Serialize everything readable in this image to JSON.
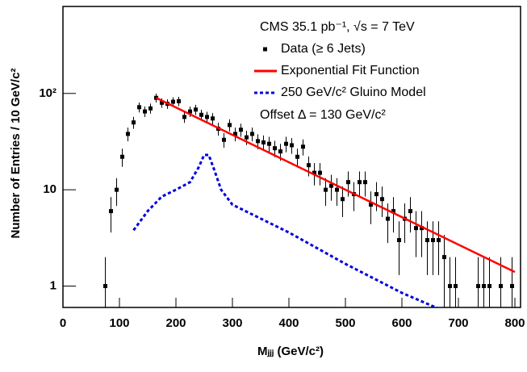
{
  "chart_data": {
    "type": "scatter",
    "xlabel": "Mⱼⱼⱼ (GeV/c²)",
    "ylabel": "Number of Entries / 10 GeV/c²",
    "annotations": [
      "CMS  35.1 pb⁻¹,  √s = 7 TeV",
      "Offset Δ = 130 GeV/c²"
    ],
    "xlim": [
      0,
      810
    ],
    "ylim": [
      0.6,
      800
    ],
    "log_y": true,
    "xticks": [
      0,
      100,
      200,
      300,
      400,
      500,
      600,
      700,
      800
    ],
    "yticks": [
      1,
      10,
      {
        "value": 100,
        "label": "10²"
      }
    ],
    "series": [
      {
        "name": "Data (≥ 6 Jets)",
        "type": "points",
        "color": "#000000",
        "x": [
          75,
          85,
          95,
          105,
          115,
          125,
          135,
          145,
          155,
          165,
          175,
          185,
          195,
          205,
          215,
          225,
          235,
          245,
          255,
          265,
          275,
          285,
          295,
          305,
          315,
          325,
          335,
          345,
          355,
          365,
          375,
          385,
          395,
          405,
          415,
          425,
          435,
          445,
          455,
          465,
          475,
          485,
          495,
          505,
          515,
          525,
          535,
          545,
          555,
          565,
          575,
          585,
          595,
          605,
          615,
          625,
          635,
          645,
          655,
          665,
          675,
          685,
          695,
          735,
          745,
          755,
          775,
          795
        ],
        "values": [
          1,
          6,
          10,
          22,
          38,
          50,
          72,
          65,
          70,
          90,
          80,
          78,
          82,
          83,
          57,
          65,
          68,
          60,
          57,
          55,
          43,
          33,
          47,
          38,
          42,
          35,
          38,
          32,
          31,
          30,
          27,
          25,
          30,
          29,
          22,
          28,
          18,
          15,
          15,
          10,
          11,
          10,
          8,
          12,
          9,
          12,
          12,
          7,
          9,
          8,
          5,
          6,
          3,
          5,
          6,
          4,
          4,
          3,
          3,
          3,
          2,
          1,
          1,
          1,
          1,
          1,
          1,
          1
        ],
        "errors": [
          1,
          2.4,
          3.2,
          4.7,
          6.2,
          7.1,
          8.5,
          8.1,
          8.4,
          9.5,
          8.9,
          8.8,
          9.1,
          9.1,
          7.5,
          8.1,
          8.2,
          7.7,
          7.5,
          7.4,
          6.6,
          5.7,
          6.9,
          6.2,
          6.5,
          5.9,
          6.2,
          5.7,
          5.6,
          5.5,
          5.2,
          5,
          5.5,
          5.4,
          4.7,
          5.3,
          4.2,
          3.9,
          3.9,
          3.2,
          3.3,
          3.2,
          2.8,
          3.5,
          3,
          3.5,
          3.5,
          2.6,
          3,
          2.8,
          2.2,
          2.4,
          1.7,
          2.2,
          2.4,
          2,
          2,
          1.7,
          1.7,
          1.7,
          1.4,
          1,
          1,
          1,
          1,
          1,
          1,
          1
        ]
      },
      {
        "name": "Exponential Fit Function",
        "type": "line",
        "color": "#ff0000",
        "x": [
          165,
          800
        ],
        "values": [
          90,
          1.4
        ]
      },
      {
        "name": "250 GeV/c² Gluino Model",
        "type": "line",
        "color": "#0000dd",
        "dashed": true,
        "x": [
          125,
          150,
          175,
          200,
          225,
          240,
          250,
          258,
          268,
          280,
          300,
          400,
          500,
          600,
          660,
          700,
          810
        ],
        "values": [
          3.8,
          6,
          8.5,
          10,
          12,
          17,
          23,
          23,
          16,
          10,
          7,
          3.6,
          1.7,
          0.85,
          0.6,
          0.5,
          0.5
        ]
      }
    ]
  }
}
